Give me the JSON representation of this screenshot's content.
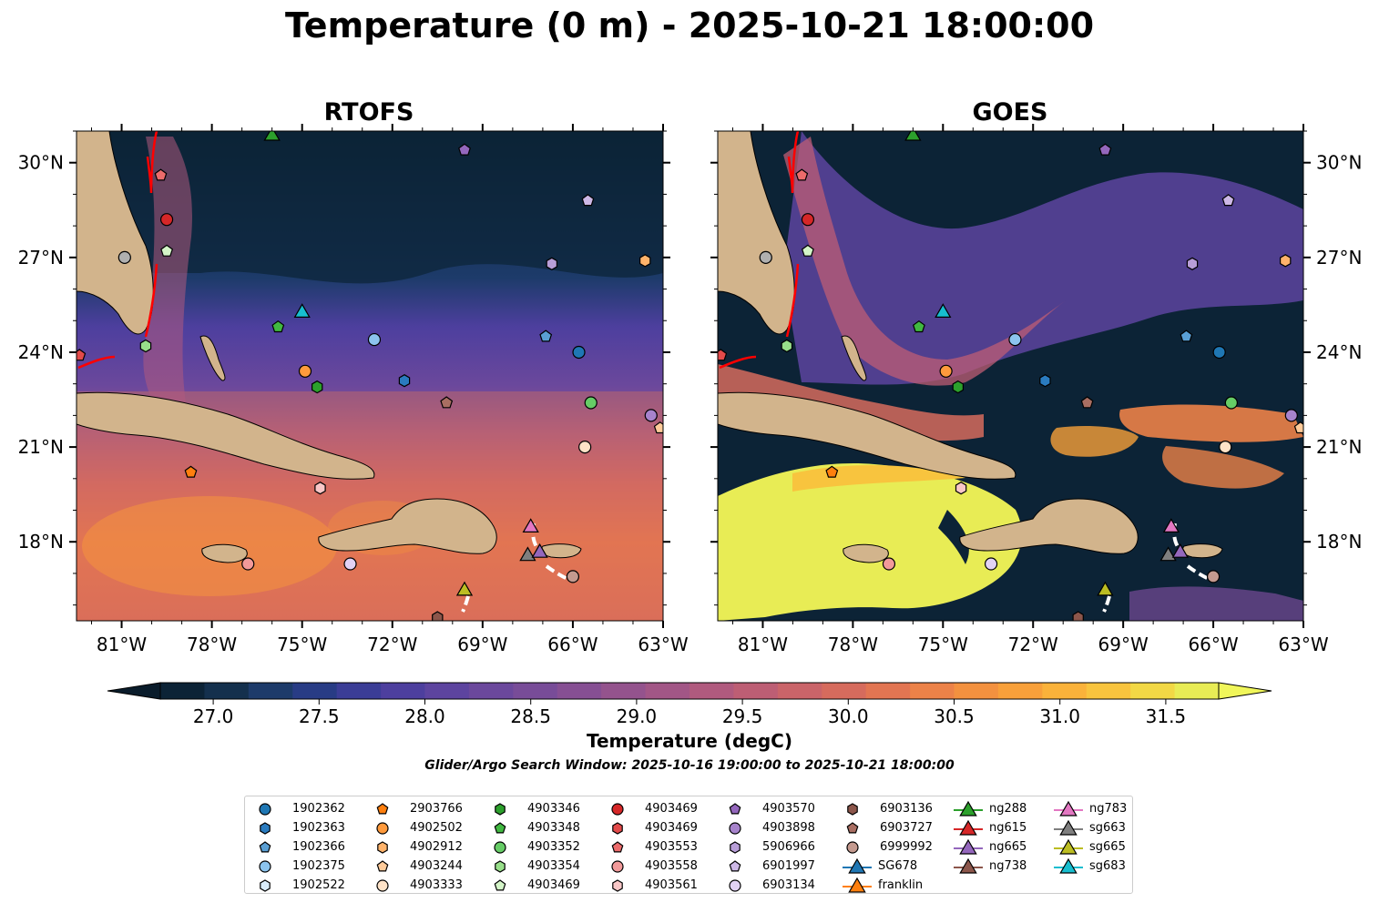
{
  "title": "Temperature (0 m) - 2025-10-21 18:00:00",
  "panels": [
    {
      "title": "RTOFS"
    },
    {
      "title": "GOES"
    }
  ],
  "map_extent": {
    "lon": [
      -82.5,
      -63
    ],
    "lat": [
      15.5,
      31
    ]
  },
  "lon_ticks": [
    "81°W",
    "78°W",
    "75°W",
    "72°W",
    "69°W",
    "66°W",
    "63°W"
  ],
  "lat_ticks": [
    "30°N",
    "27°N",
    "24°N",
    "21°N",
    "18°N"
  ],
  "colorbar": {
    "label": "Temperature (degC)",
    "min": 26.75,
    "max": 31.75,
    "step": 0.25,
    "ticks": [
      "27.0",
      "27.5",
      "28.0",
      "28.5",
      "29.0",
      "29.5",
      "30.0",
      "30.5",
      "31.0",
      "31.5"
    ],
    "colors": [
      "#0c2336",
      "#14304d",
      "#1d3b6a",
      "#283c85",
      "#3b3d96",
      "#4d3f9e",
      "#5d449f",
      "#6b489c",
      "#784c98",
      "#864f93",
      "#94538d",
      "#a25686",
      "#b05a7e",
      "#bd5e74",
      "#ca6469",
      "#d66b5d",
      "#e27552",
      "#ec8248",
      "#f3913f",
      "#f8a03a",
      "#fab23a",
      "#f8c43e",
      "#f2d845",
      "#e8ec55"
    ],
    "extend": "both"
  },
  "search_window": "Glider/Argo Search Window: 2025-10-16 19:00:00 to 2025-10-21 18:00:00",
  "legend": [
    {
      "label": "1902362",
      "marker": "circle",
      "color": "#1f77b4"
    },
    {
      "label": "1902363",
      "marker": "hexagon",
      "color": "#2a7bbf"
    },
    {
      "label": "1902366",
      "marker": "pentagon",
      "color": "#5a9fd4"
    },
    {
      "label": "1902375",
      "marker": "circle",
      "color": "#8cc4ee"
    },
    {
      "label": "1902522",
      "marker": "hexagon",
      "color": "#d9ecfa"
    },
    {
      "label": "2903766",
      "marker": "pentagon",
      "color": "#ff7f0e"
    },
    {
      "label": "4902502",
      "marker": "circle",
      "color": "#ff9a3c"
    },
    {
      "label": "4902912",
      "marker": "hexagon",
      "color": "#ffb36b"
    },
    {
      "label": "4903244",
      "marker": "pentagon",
      "color": "#ffcb9a"
    },
    {
      "label": "4903333",
      "marker": "circle",
      "color": "#ffe3c8"
    },
    {
      "label": "4903346",
      "marker": "hexagon",
      "color": "#2ca02c"
    },
    {
      "label": "4903348",
      "marker": "pentagon",
      "color": "#41b841"
    },
    {
      "label": "4903352",
      "marker": "circle",
      "color": "#66cc66"
    },
    {
      "label": "4903354",
      "marker": "hexagon",
      "color": "#98df8a"
    },
    {
      "label": "4903469",
      "marker": "pentagon",
      "color": "#d4f5c8"
    },
    {
      "label": "4903469",
      "marker": "circle",
      "color": "#d62728"
    },
    {
      "label": "4903469",
      "marker": "hexagon",
      "color": "#e24a4a"
    },
    {
      "label": "4903553",
      "marker": "pentagon",
      "color": "#ec6b6b"
    },
    {
      "label": "4903558",
      "marker": "circle",
      "color": "#f29a9a"
    },
    {
      "label": "4903561",
      "marker": "hexagon",
      "color": "#f9c7c7"
    },
    {
      "label": "4903570",
      "marker": "pentagon",
      "color": "#9467bd"
    },
    {
      "label": "4903898",
      "marker": "circle",
      "color": "#a783cc"
    },
    {
      "label": "5906966",
      "marker": "hexagon",
      "color": "#b89ed8"
    },
    {
      "label": "6901997",
      "marker": "pentagon",
      "color": "#cdb8e6"
    },
    {
      "label": "6903134",
      "marker": "circle",
      "color": "#e2d2f4"
    },
    {
      "label": "6903136",
      "marker": "hexagon",
      "color": "#8c564b"
    },
    {
      "label": "6903727",
      "marker": "pentagon",
      "color": "#a96e62"
    },
    {
      "label": "6999992",
      "marker": "circle",
      "color": "#c49a8f"
    },
    {
      "label": "SG678",
      "marker": "triangle-line",
      "color": "#1f77b4"
    },
    {
      "label": "franklin",
      "marker": "triangle-line",
      "color": "#ff7f0e"
    },
    {
      "label": "ng288",
      "marker": "triangle-line",
      "color": "#2ca02c"
    },
    {
      "label": "ng615",
      "marker": "triangle-line",
      "color": "#d62728"
    },
    {
      "label": "ng665",
      "marker": "triangle-line",
      "color": "#9467bd"
    },
    {
      "label": "ng738",
      "marker": "triangle-line",
      "color": "#8c564b"
    },
    {
      "label": "ng783",
      "marker": "triangle-line",
      "color": "#e377c2"
    },
    {
      "label": "sg663",
      "marker": "triangle-line",
      "color": "#7f7f7f"
    },
    {
      "label": "sg665",
      "marker": "triangle-line",
      "color": "#bcbd22"
    },
    {
      "label": "sg683",
      "marker": "triangle-line",
      "color": "#17becf"
    }
  ],
  "map_points": [
    {
      "lon": -79.7,
      "lat": 29.6,
      "marker": "pentagon",
      "color": "#ec6b6b"
    },
    {
      "lon": -79.5,
      "lat": 28.2,
      "marker": "circle",
      "color": "#d62728"
    },
    {
      "lon": -79.5,
      "lat": 27.2,
      "marker": "pentagon",
      "color": "#d4f5c8"
    },
    {
      "lon": -80.9,
      "lat": 27.0,
      "marker": "circle",
      "color": "#b0b0b0"
    },
    {
      "lon": -69.6,
      "lat": 30.4,
      "marker": "pentagon",
      "color": "#9467bd"
    },
    {
      "lon": -65.5,
      "lat": 28.8,
      "marker": "pentagon",
      "color": "#cdb8e6"
    },
    {
      "lon": -66.7,
      "lat": 26.8,
      "marker": "hexagon",
      "color": "#b89ed8"
    },
    {
      "lon": -63.6,
      "lat": 26.9,
      "marker": "hexagon",
      "color": "#ffb36b"
    },
    {
      "lon": -75.8,
      "lat": 24.8,
      "marker": "pentagon",
      "color": "#41b841"
    },
    {
      "lon": -80.2,
      "lat": 24.2,
      "marker": "hexagon",
      "color": "#98df8a"
    },
    {
      "lon": -72.6,
      "lat": 24.4,
      "marker": "circle",
      "color": "#8cc4ee"
    },
    {
      "lon": -66.9,
      "lat": 24.5,
      "marker": "pentagon",
      "color": "#5a9fd4"
    },
    {
      "lon": -65.8,
      "lat": 24.0,
      "marker": "circle",
      "color": "#1f77b4"
    },
    {
      "lon": -74.9,
      "lat": 23.4,
      "marker": "circle",
      "color": "#ff9a3c"
    },
    {
      "lon": -74.5,
      "lat": 22.9,
      "marker": "hexagon",
      "color": "#2ca02c"
    },
    {
      "lon": -71.6,
      "lat": 23.1,
      "marker": "hexagon",
      "color": "#2a7bbf"
    },
    {
      "lon": -70.2,
      "lat": 22.4,
      "marker": "pentagon",
      "color": "#a96e62"
    },
    {
      "lon": -65.4,
      "lat": 22.4,
      "marker": "circle",
      "color": "#66cc66"
    },
    {
      "lon": -63.4,
      "lat": 22.0,
      "marker": "circle",
      "color": "#a783cc"
    },
    {
      "lon": -63.1,
      "lat": 21.6,
      "marker": "pentagon",
      "color": "#ffcb9a"
    },
    {
      "lon": -65.6,
      "lat": 21.0,
      "marker": "circle",
      "color": "#ffe3c8"
    },
    {
      "lon": -78.7,
      "lat": 20.2,
      "marker": "pentagon",
      "color": "#ff7f0e"
    },
    {
      "lon": -74.4,
      "lat": 19.7,
      "marker": "hexagon",
      "color": "#f9c7c7"
    },
    {
      "lon": -76.8,
      "lat": 17.3,
      "marker": "circle",
      "color": "#f29a9a"
    },
    {
      "lon": -73.4,
      "lat": 17.3,
      "marker": "circle",
      "color": "#e2d2f4"
    },
    {
      "lon": -66.0,
      "lat": 16.9,
      "marker": "circle",
      "color": "#c49a8f"
    },
    {
      "lon": -82.4,
      "lat": 23.9,
      "marker": "pentagon",
      "color": "#e24a4a"
    },
    {
      "lon": -70.5,
      "lat": 15.6,
      "marker": "hexagon",
      "color": "#8c564b"
    }
  ],
  "map_tracks": [
    {
      "name": "ng288",
      "color": "#2ca02c",
      "lon": -76.0,
      "lat": 30.9
    },
    {
      "name": "sg683",
      "color": "#17becf",
      "lon": -75.0,
      "lat": 25.3
    },
    {
      "name": "ng783",
      "color": "#e377c2",
      "lon": -67.4,
      "lat": 18.5
    },
    {
      "name": "sg663",
      "color": "#7f7f7f",
      "lon": -67.5,
      "lat": 17.6
    },
    {
      "name": "ng665",
      "color": "#9467bd",
      "lon": -67.1,
      "lat": 17.7
    },
    {
      "name": "sg665",
      "color": "#bcbd22",
      "lon": -69.6,
      "lat": 16.5
    }
  ]
}
